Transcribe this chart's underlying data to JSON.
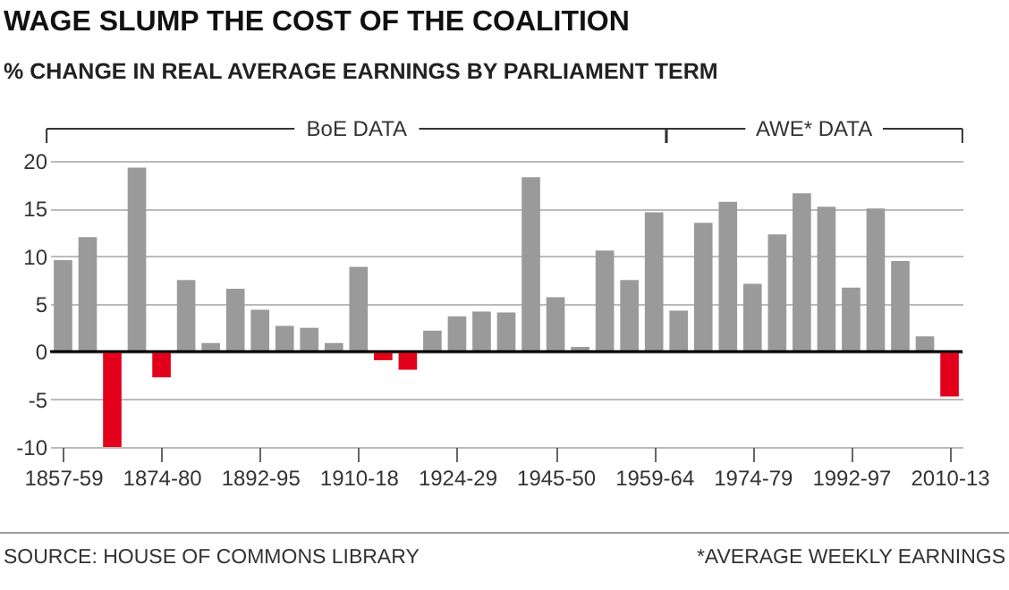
{
  "chart_data": {
    "type": "bar",
    "title": "WAGE SLUMP THE COST OF THE COALITION",
    "subtitle": "% CHANGE IN REAL AVERAGE EARNINGS BY PARLIAMENT TERM",
    "categories": [
      "1857-59",
      null,
      null,
      null,
      "1874-80",
      null,
      null,
      null,
      "1892-95",
      null,
      null,
      null,
      "1910-18",
      null,
      null,
      null,
      "1924-29",
      null,
      null,
      null,
      "1945-50",
      null,
      null,
      null,
      "1959-64",
      null,
      null,
      null,
      "1974-79",
      null,
      null,
      null,
      "1992-97",
      null,
      null,
      null,
      "2010-13"
    ],
    "values": [
      9.6,
      12,
      -10,
      19.3,
      -2.7,
      7.5,
      0.9,
      6.6,
      4.4,
      2.7,
      2.5,
      0.9,
      8.9,
      -0.9,
      -1.9,
      2.2,
      3.7,
      4.2,
      4.1,
      18.3,
      5.7,
      0.5,
      10.6,
      7.5,
      14.6,
      4.3,
      13.5,
      15.7,
      7.1,
      12.3,
      16.6,
      15.2,
      6.7,
      15.0,
      9.5,
      1.6,
      -4.7
    ],
    "colors": [
      "#9a9a9a",
      "#9a9a9a",
      "#e2001a",
      "#9a9a9a",
      "#e2001a",
      "#9a9a9a",
      "#9a9a9a",
      "#9a9a9a",
      "#9a9a9a",
      "#9a9a9a",
      "#9a9a9a",
      "#9a9a9a",
      "#9a9a9a",
      "#e2001a",
      "#e2001a",
      "#9a9a9a",
      "#9a9a9a",
      "#9a9a9a",
      "#9a9a9a",
      "#9a9a9a",
      "#9a9a9a",
      "#9a9a9a",
      "#9a9a9a",
      "#9a9a9a",
      "#9a9a9a",
      "#9a9a9a",
      "#9a9a9a",
      "#9a9a9a",
      "#9a9a9a",
      "#9a9a9a",
      "#9a9a9a",
      "#9a9a9a",
      "#9a9a9a",
      "#9a9a9a",
      "#9a9a9a",
      "#9a9a9a",
      "#e2001a"
    ],
    "ylim": [
      -10,
      20
    ],
    "yticks": [
      -10,
      -5,
      0,
      5,
      10,
      15,
      20
    ],
    "grid": "y",
    "annotations": [
      "SOURCE: HOUSE OF COMMONS LIBRARY",
      "*AVERAGE WEEKLY EARNINGS",
      "BoE DATA",
      "AWE* DATA"
    ]
  }
}
